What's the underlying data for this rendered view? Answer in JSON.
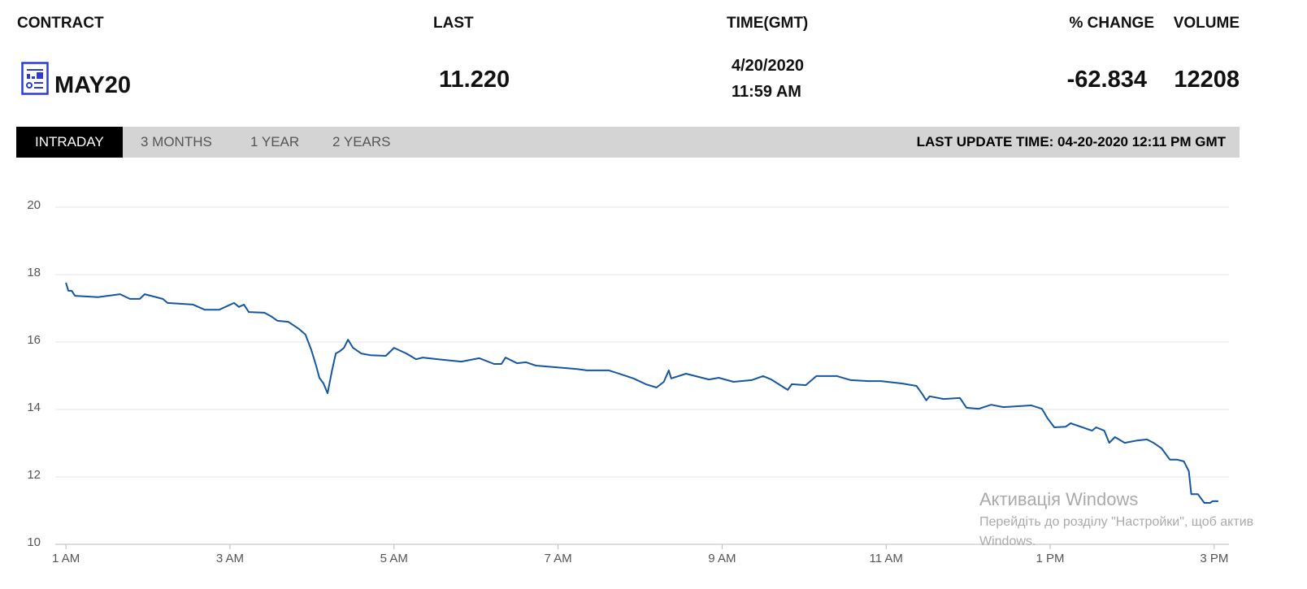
{
  "header": {
    "columns": [
      "CONTRACT",
      "LAST",
      "TIME(GMT)",
      "% CHANGE",
      "VOLUME"
    ],
    "contract": "MAY20",
    "last": "11.220",
    "date": "4/20/2020",
    "time": "11:59 AM",
    "change": "-62.834",
    "volume": "12208"
  },
  "tabs": [
    "INTRADAY",
    "3 MONTHS",
    "1 YEAR",
    "2 YEARS"
  ],
  "last_update": "LAST UPDATE TIME: 04-20-2020 12:11 PM GMT",
  "watermark": {
    "title": "Активація Windows",
    "lines": [
      "Перейдіть до розділу \"Настройки\", щоб актив",
      "Windows."
    ]
  },
  "chart_data": {
    "type": "line",
    "x": [
      1.0,
      1.03,
      1.07,
      1.11,
      1.39,
      1.66,
      1.78,
      1.9,
      1.96,
      2.18,
      2.24,
      2.55,
      2.69,
      2.87,
      3.05,
      3.11,
      3.17,
      3.23,
      3.42,
      3.51,
      3.58,
      3.71,
      3.84,
      3.92,
      3.99,
      4.05,
      4.09,
      4.14,
      4.19,
      4.24,
      4.29,
      4.34,
      4.39,
      4.44,
      4.5,
      4.6,
      4.71,
      4.9,
      5.0,
      5.15,
      5.27,
      5.35,
      5.54,
      5.82,
      6.04,
      6.22,
      6.31,
      6.36,
      6.5,
      6.61,
      6.73,
      7.23,
      7.35,
      7.62,
      7.77,
      7.92,
      8.07,
      8.2,
      8.29,
      8.35,
      8.38,
      8.56,
      8.84,
      8.96,
      9.14,
      9.36,
      9.5,
      9.6,
      9.8,
      9.85,
      10.02,
      10.15,
      10.4,
      10.57,
      10.79,
      10.94,
      11.19,
      11.37,
      11.44,
      11.49,
      11.53,
      11.7,
      11.9,
      11.98,
      12.13,
      12.28,
      12.43,
      12.77,
      12.9,
      12.97,
      13.05,
      13.19,
      13.25,
      13.51,
      13.56,
      13.66,
      13.72,
      13.79,
      13.91,
      14.06,
      14.18,
      14.26,
      14.36,
      14.46,
      14.55,
      14.63,
      14.69,
      14.72,
      14.8,
      14.88,
      14.95,
      14.98,
      15.05
    ],
    "series": [
      {
        "color": "#1456a0",
        "values": [
          17.76,
          17.52,
          17.52,
          17.37,
          17.33,
          17.42,
          17.28,
          17.28,
          17.42,
          17.28,
          17.16,
          17.11,
          16.96,
          16.96,
          17.16,
          17.04,
          17.11,
          16.89,
          16.87,
          16.75,
          16.63,
          16.6,
          16.39,
          16.22,
          15.78,
          15.3,
          14.94,
          14.77,
          14.48,
          15.11,
          15.66,
          15.73,
          15.83,
          16.07,
          15.83,
          15.66,
          15.61,
          15.59,
          15.83,
          15.66,
          15.49,
          15.54,
          15.49,
          15.42,
          15.52,
          15.35,
          15.35,
          15.54,
          15.37,
          15.4,
          15.3,
          15.2,
          15.16,
          15.16,
          15.04,
          14.92,
          14.75,
          14.65,
          14.82,
          15.16,
          14.92,
          15.06,
          14.89,
          14.94,
          14.82,
          14.87,
          14.99,
          14.89,
          14.58,
          14.75,
          14.72,
          14.99,
          14.99,
          14.87,
          14.84,
          14.84,
          14.77,
          14.7,
          14.46,
          14.27,
          14.39,
          14.31,
          14.34,
          14.05,
          14.02,
          14.14,
          14.07,
          14.12,
          14.02,
          13.73,
          13.47,
          13.49,
          13.59,
          13.37,
          13.47,
          13.37,
          13.01,
          13.18,
          13.01,
          13.08,
          13.11,
          13.01,
          12.84,
          12.51,
          12.51,
          12.46,
          12.17,
          11.49,
          11.49,
          11.23,
          11.23,
          11.28,
          11.28
        ]
      }
    ],
    "xlim": [
      0.87,
      15.18
    ],
    "xticks": [
      {
        "value": 1,
        "label": "1 AM"
      },
      {
        "value": 3,
        "label": "3 AM"
      },
      {
        "value": 5,
        "label": "5 AM"
      },
      {
        "value": 7,
        "label": "7 AM"
      },
      {
        "value": 9,
        "label": "9 AM"
      },
      {
        "value": 11,
        "label": "11 AM"
      },
      {
        "value": 13,
        "label": "1 PM"
      },
      {
        "value": 15,
        "label": "3 PM"
      }
    ],
    "ylim": [
      10,
      20
    ],
    "yticks": [
      10,
      12,
      14,
      16,
      18,
      20
    ],
    "grid": true
  }
}
